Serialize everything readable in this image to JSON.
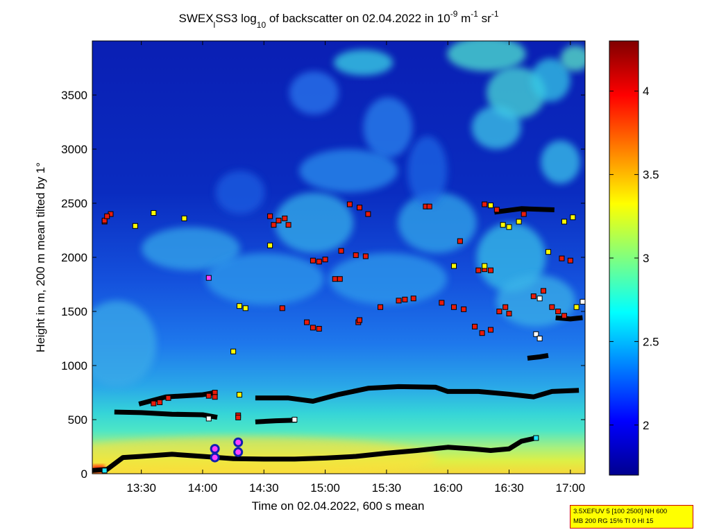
{
  "chart_data": {
    "type": "heatmap",
    "title": {
      "prefix": "SWEX",
      "sub1": "l",
      "mid": "SS3 log",
      "sub2": "10",
      "mid2": " of backscatter on 02.04.2022 in 10",
      "sup1": "-9",
      "mid3": " m",
      "sup2": "-1",
      "mid4": " sr",
      "sup3": "-1"
    },
    "xlabel": "Time on 02.04.2022, 600 s mean",
    "ylabel": "Height in m, 200 m mean tilted by 1°",
    "x_range_hours": [
      13.1,
      17.12
    ],
    "y_range_m": [
      0,
      4000
    ],
    "x_ticks": [
      {
        "value": 13.5,
        "label": "13:30"
      },
      {
        "value": 14.0,
        "label": "14:00"
      },
      {
        "value": 14.5,
        "label": "14:30"
      },
      {
        "value": 15.0,
        "label": "15:00"
      },
      {
        "value": 15.5,
        "label": "15:30"
      },
      {
        "value": 16.0,
        "label": "16:00"
      },
      {
        "value": 16.5,
        "label": "16:30"
      },
      {
        "value": 17.0,
        "label": "17:00"
      }
    ],
    "y_ticks": [
      {
        "value": 0,
        "label": "0"
      },
      {
        "value": 500,
        "label": "500"
      },
      {
        "value": 1000,
        "label": "1000"
      },
      {
        "value": 1500,
        "label": "1500"
      },
      {
        "value": 2000,
        "label": "2000"
      },
      {
        "value": 2500,
        "label": "2500"
      },
      {
        "value": 3000,
        "label": "3000"
      },
      {
        "value": 3500,
        "label": "3500"
      }
    ],
    "colorbar": {
      "range": [
        1.7,
        4.3
      ],
      "ticks": [
        {
          "value": 2,
          "label": "2"
        },
        {
          "value": 2.5,
          "label": "2.5"
        },
        {
          "value": 3,
          "label": "3"
        },
        {
          "value": 3.5,
          "label": "3.5"
        },
        {
          "value": 4,
          "label": "4"
        }
      ]
    },
    "layers": [
      {
        "name": "surface layer",
        "points": [
          [
            13.1,
            30
          ],
          [
            13.22,
            40
          ],
          [
            13.35,
            150
          ],
          [
            13.5,
            160
          ],
          [
            13.75,
            180
          ],
          [
            14.0,
            160
          ],
          [
            14.25,
            140
          ],
          [
            14.5,
            135
          ],
          [
            14.75,
            135
          ],
          [
            15.0,
            145
          ],
          [
            15.25,
            160
          ],
          [
            15.5,
            190
          ],
          [
            15.75,
            215
          ],
          [
            16.0,
            245
          ],
          [
            16.2,
            230
          ],
          [
            16.35,
            215
          ],
          [
            16.5,
            230
          ],
          [
            16.6,
            300
          ],
          [
            16.72,
            330
          ]
        ]
      },
      {
        "name": "lower layer",
        "points": [
          [
            13.3,
            570
          ],
          [
            13.5,
            565
          ],
          [
            13.75,
            550
          ],
          [
            14.0,
            545
          ],
          [
            14.1,
            525
          ]
        ]
      },
      {
        "name": "mixing layer",
        "points": [
          [
            13.5,
            650
          ],
          [
            13.7,
            710
          ],
          [
            14.0,
            730
          ],
          [
            14.1,
            750
          ]
        ]
      },
      {
        "name": "residual layer",
        "points": [
          [
            14.45,
            700
          ],
          [
            14.7,
            700
          ],
          [
            14.9,
            670
          ],
          [
            15.1,
            730
          ],
          [
            15.35,
            790
          ],
          [
            15.6,
            805
          ],
          [
            15.9,
            800
          ],
          [
            16.0,
            760
          ],
          [
            16.25,
            760
          ],
          [
            16.5,
            735
          ],
          [
            16.7,
            710
          ],
          [
            16.85,
            760
          ],
          [
            17.05,
            770
          ]
        ]
      },
      {
        "name": "short layer",
        "points": [
          [
            14.45,
            480
          ],
          [
            14.6,
            490
          ],
          [
            14.75,
            495
          ]
        ]
      },
      {
        "name": "cloud base 1",
        "points": [
          [
            16.67,
            1070
          ],
          [
            16.75,
            1080
          ],
          [
            16.8,
            1090
          ]
        ]
      },
      {
        "name": "cloud base 2",
        "points": [
          [
            16.9,
            1440
          ],
          [
            17.0,
            1430
          ],
          [
            17.08,
            1440
          ]
        ]
      },
      {
        "name": "cloud top",
        "points": [
          [
            16.4,
            2420
          ],
          [
            16.6,
            2450
          ],
          [
            16.85,
            2440
          ]
        ]
      }
    ],
    "markers": [
      {
        "t": 13.2,
        "h": 2330,
        "color": "red"
      },
      {
        "t": 13.25,
        "h": 2400,
        "color": "red"
      },
      {
        "t": 13.2,
        "h": 2340,
        "color": "red"
      },
      {
        "t": 13.22,
        "h": 2380,
        "color": "red"
      },
      {
        "t": 13.45,
        "h": 2290,
        "color": "yellow"
      },
      {
        "t": 13.6,
        "h": 2410,
        "color": "yellow"
      },
      {
        "t": 13.85,
        "h": 2360,
        "color": "yellow"
      },
      {
        "t": 14.05,
        "h": 1810,
        "color": "magenta"
      },
      {
        "t": 14.3,
        "h": 1550,
        "color": "yellow"
      },
      {
        "t": 14.35,
        "h": 1530,
        "color": "yellow"
      },
      {
        "t": 14.25,
        "h": 1130,
        "color": "yellow"
      },
      {
        "t": 14.55,
        "h": 2380,
        "color": "red"
      },
      {
        "t": 14.58,
        "h": 2300,
        "color": "red"
      },
      {
        "t": 14.62,
        "h": 2340,
        "color": "red"
      },
      {
        "t": 14.67,
        "h": 2360,
        "color": "red"
      },
      {
        "t": 14.7,
        "h": 2300,
        "color": "red"
      },
      {
        "t": 14.55,
        "h": 2110,
        "color": "yellow"
      },
      {
        "t": 14.65,
        "h": 1530,
        "color": "red"
      },
      {
        "t": 14.85,
        "h": 1400,
        "color": "red"
      },
      {
        "t": 14.9,
        "h": 1350,
        "color": "red"
      },
      {
        "t": 14.95,
        "h": 1340,
        "color": "red"
      },
      {
        "t": 14.9,
        "h": 1970,
        "color": "red"
      },
      {
        "t": 14.95,
        "h": 1960,
        "color": "red"
      },
      {
        "t": 15.0,
        "h": 1980,
        "color": "red"
      },
      {
        "t": 15.08,
        "h": 1800,
        "color": "red"
      },
      {
        "t": 15.12,
        "h": 1800,
        "color": "red"
      },
      {
        "t": 15.13,
        "h": 2060,
        "color": "red"
      },
      {
        "t": 15.25,
        "h": 2020,
        "color": "red"
      },
      {
        "t": 15.33,
        "h": 2010,
        "color": "red"
      },
      {
        "t": 15.2,
        "h": 2490,
        "color": "red"
      },
      {
        "t": 15.28,
        "h": 2460,
        "color": "red"
      },
      {
        "t": 15.35,
        "h": 2400,
        "color": "red"
      },
      {
        "t": 15.27,
        "h": 1400,
        "color": "red"
      },
      {
        "t": 15.28,
        "h": 1420,
        "color": "red"
      },
      {
        "t": 15.45,
        "h": 1540,
        "color": "red"
      },
      {
        "t": 15.6,
        "h": 1600,
        "color": "red"
      },
      {
        "t": 15.65,
        "h": 1610,
        "color": "red"
      },
      {
        "t": 15.72,
        "h": 1620,
        "color": "red"
      },
      {
        "t": 15.82,
        "h": 2470,
        "color": "red"
      },
      {
        "t": 15.85,
        "h": 2470,
        "color": "red"
      },
      {
        "t": 15.95,
        "h": 1580,
        "color": "red"
      },
      {
        "t": 16.05,
        "h": 1540,
        "color": "red"
      },
      {
        "t": 16.13,
        "h": 1520,
        "color": "red"
      },
      {
        "t": 16.05,
        "h": 1920,
        "color": "yellow"
      },
      {
        "t": 16.1,
        "h": 2150,
        "color": "red"
      },
      {
        "t": 16.25,
        "h": 1880,
        "color": "red"
      },
      {
        "t": 16.3,
        "h": 1890,
        "color": "red"
      },
      {
        "t": 16.35,
        "h": 1880,
        "color": "red"
      },
      {
        "t": 16.3,
        "h": 1920,
        "color": "yellow"
      },
      {
        "t": 16.22,
        "h": 1360,
        "color": "red"
      },
      {
        "t": 16.28,
        "h": 1300,
        "color": "red"
      },
      {
        "t": 16.35,
        "h": 1330,
        "color": "red"
      },
      {
        "t": 16.42,
        "h": 1500,
        "color": "red"
      },
      {
        "t": 16.47,
        "h": 1540,
        "color": "red"
      },
      {
        "t": 16.5,
        "h": 1480,
        "color": "red"
      },
      {
        "t": 16.3,
        "h": 2490,
        "color": "red"
      },
      {
        "t": 16.35,
        "h": 2480,
        "color": "yellow"
      },
      {
        "t": 16.4,
        "h": 2440,
        "color": "red"
      },
      {
        "t": 16.45,
        "h": 2300,
        "color": "yellow"
      },
      {
        "t": 16.5,
        "h": 2280,
        "color": "yellow"
      },
      {
        "t": 16.58,
        "h": 2330,
        "color": "yellow"
      },
      {
        "t": 16.62,
        "h": 2400,
        "color": "red"
      },
      {
        "t": 16.7,
        "h": 1640,
        "color": "red"
      },
      {
        "t": 16.78,
        "h": 1690,
        "color": "red"
      },
      {
        "t": 16.75,
        "h": 1620,
        "color": "white"
      },
      {
        "t": 16.82,
        "h": 2050,
        "color": "yellow"
      },
      {
        "t": 16.93,
        "h": 1990,
        "color": "red"
      },
      {
        "t": 17.0,
        "h": 1970,
        "color": "red"
      },
      {
        "t": 16.85,
        "h": 1540,
        "color": "red"
      },
      {
        "t": 16.9,
        "h": 1500,
        "color": "red"
      },
      {
        "t": 16.95,
        "h": 1460,
        "color": "red"
      },
      {
        "t": 17.05,
        "h": 1540,
        "color": "yellow"
      },
      {
        "t": 17.1,
        "h": 1590,
        "color": "white"
      },
      {
        "t": 16.95,
        "h": 2330,
        "color": "yellow"
      },
      {
        "t": 17.02,
        "h": 2370,
        "color": "yellow"
      },
      {
        "t": 16.72,
        "h": 1290,
        "color": "white"
      },
      {
        "t": 16.75,
        "h": 1250,
        "color": "white"
      },
      {
        "t": 13.2,
        "h": 30,
        "color": "cyan"
      },
      {
        "t": 16.72,
        "h": 330,
        "color": "cyan"
      },
      {
        "t": 14.3,
        "h": 730,
        "color": "yellow"
      },
      {
        "t": 14.75,
        "h": 500,
        "color": "white"
      },
      {
        "t": 14.05,
        "h": 510,
        "color": "white"
      },
      {
        "t": 13.6,
        "h": 650,
        "color": "red"
      },
      {
        "t": 13.65,
        "h": 660,
        "color": "red"
      },
      {
        "t": 13.72,
        "h": 700,
        "color": "red"
      },
      {
        "t": 14.05,
        "h": 720,
        "color": "red"
      },
      {
        "t": 14.1,
        "h": 750,
        "color": "red"
      },
      {
        "t": 14.1,
        "h": 710,
        "color": "red"
      },
      {
        "t": 14.29,
        "h": 540,
        "color": "red"
      },
      {
        "t": 14.29,
        "h": 520,
        "color": "red"
      }
    ],
    "circles": [
      {
        "t": 14.1,
        "h": 230,
        "color": "magenta"
      },
      {
        "t": 14.1,
        "h": 150,
        "color": "magenta"
      },
      {
        "t": 14.29,
        "h": 290,
        "color": "magenta"
      },
      {
        "t": 14.29,
        "h": 200,
        "color": "magenta"
      }
    ]
  },
  "info": {
    "line1": "3.5XEFUV 5 [100 2500] NH 600",
    "line2": "MB 200 RG 15% TI 0 HI 15"
  }
}
